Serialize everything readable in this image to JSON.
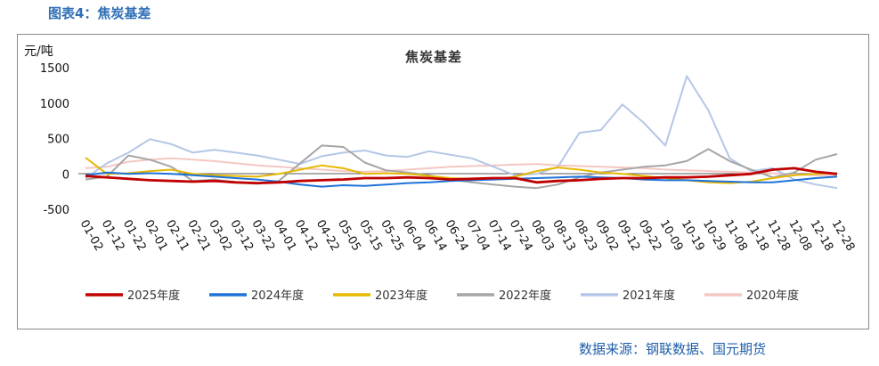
{
  "figure": {
    "label": "图表4：焦炭基差",
    "source": "数据来源：钢联数据、国元期货"
  },
  "chart_data": {
    "type": "line",
    "title": "焦炭基差",
    "ylabel": "元/吨",
    "ylim": [
      -500,
      1500
    ],
    "yticks": [
      -500,
      0,
      500,
      1000,
      1500
    ],
    "x_ticks": [
      "01-02",
      "01-12",
      "01-22",
      "02-01",
      "02-11",
      "02-21",
      "03-02",
      "03-12",
      "03-22",
      "04-01",
      "04-12",
      "04-22",
      "05-05",
      "05-15",
      "05-25",
      "06-04",
      "06-14",
      "06-24",
      "07-04",
      "07-14",
      "07-24",
      "08-03",
      "08-13",
      "08-23",
      "09-02",
      "09-12",
      "09-22",
      "10-09",
      "10-19",
      "10-29",
      "11-08",
      "11-18",
      "11-28",
      "12-08",
      "12-18",
      "12-28"
    ],
    "legend_position": "bottom",
    "series": [
      {
        "name": "2025年度",
        "color": "#c00000",
        "values": [
          -30,
          -50,
          -70,
          -90,
          -100,
          -110,
          -100,
          -120,
          -130,
          -120,
          -100,
          -90,
          -80,
          -60,
          -60,
          -50,
          -60,
          -80,
          -70,
          -60,
          -60,
          -120,
          -100,
          -90,
          -70,
          -60,
          -60,
          -50,
          -50,
          -40,
          -20,
          0,
          60,
          80,
          30,
          0
        ]
      },
      {
        "name": "2024年度",
        "color": "#1e73d8",
        "values": [
          -20,
          20,
          0,
          10,
          0,
          -20,
          -40,
          -60,
          -80,
          -110,
          -150,
          -180,
          -160,
          -170,
          -150,
          -130,
          -120,
          -100,
          -90,
          -80,
          -70,
          -60,
          -50,
          -40,
          -50,
          -60,
          -80,
          -90,
          -90,
          -100,
          -110,
          -120,
          -120,
          -90,
          -60,
          -40
        ]
      },
      {
        "name": "2023年度",
        "color": "#e6b800",
        "values": [
          230,
          0,
          10,
          40,
          60,
          0,
          -20,
          -30,
          -40,
          0,
          60,
          120,
          80,
          0,
          10,
          0,
          -30,
          -60,
          -70,
          -80,
          -40,
          40,
          90,
          60,
          20,
          0,
          -30,
          -60,
          -90,
          -120,
          -130,
          -110,
          -60,
          -20,
          0,
          10
        ]
      },
      {
        "name": "2022年度",
        "color": "#a6a6a6",
        "values": [
          -80,
          -40,
          260,
          200,
          100,
          -100,
          -80,
          -120,
          -140,
          -100,
          150,
          400,
          380,
          160,
          50,
          20,
          -20,
          -80,
          -120,
          -150,
          -180,
          -200,
          -150,
          -50,
          20,
          60,
          100,
          120,
          180,
          350,
          180,
          60,
          -50,
          20,
          200,
          280
        ]
      },
      {
        "name": "2021年度",
        "color": "#b4c7e7",
        "values": [
          -60,
          150,
          300,
          490,
          420,
          300,
          340,
          300,
          260,
          200,
          140,
          250,
          300,
          330,
          260,
          240,
          320,
          270,
          220,
          100,
          -20,
          0,
          100,
          580,
          620,
          980,
          720,
          400,
          1380,
          900,
          220,
          40,
          80,
          -80,
          -150,
          -200
        ]
      },
      {
        "name": "2020年度",
        "color": "#f4c7c3",
        "values": [
          80,
          100,
          170,
          200,
          220,
          200,
          180,
          150,
          120,
          100,
          80,
          60,
          40,
          30,
          40,
          60,
          80,
          100,
          110,
          120,
          130,
          140,
          120,
          110,
          100,
          90,
          80,
          60,
          50,
          40,
          30,
          20,
          10,
          -10,
          -20,
          -30
        ]
      }
    ]
  }
}
